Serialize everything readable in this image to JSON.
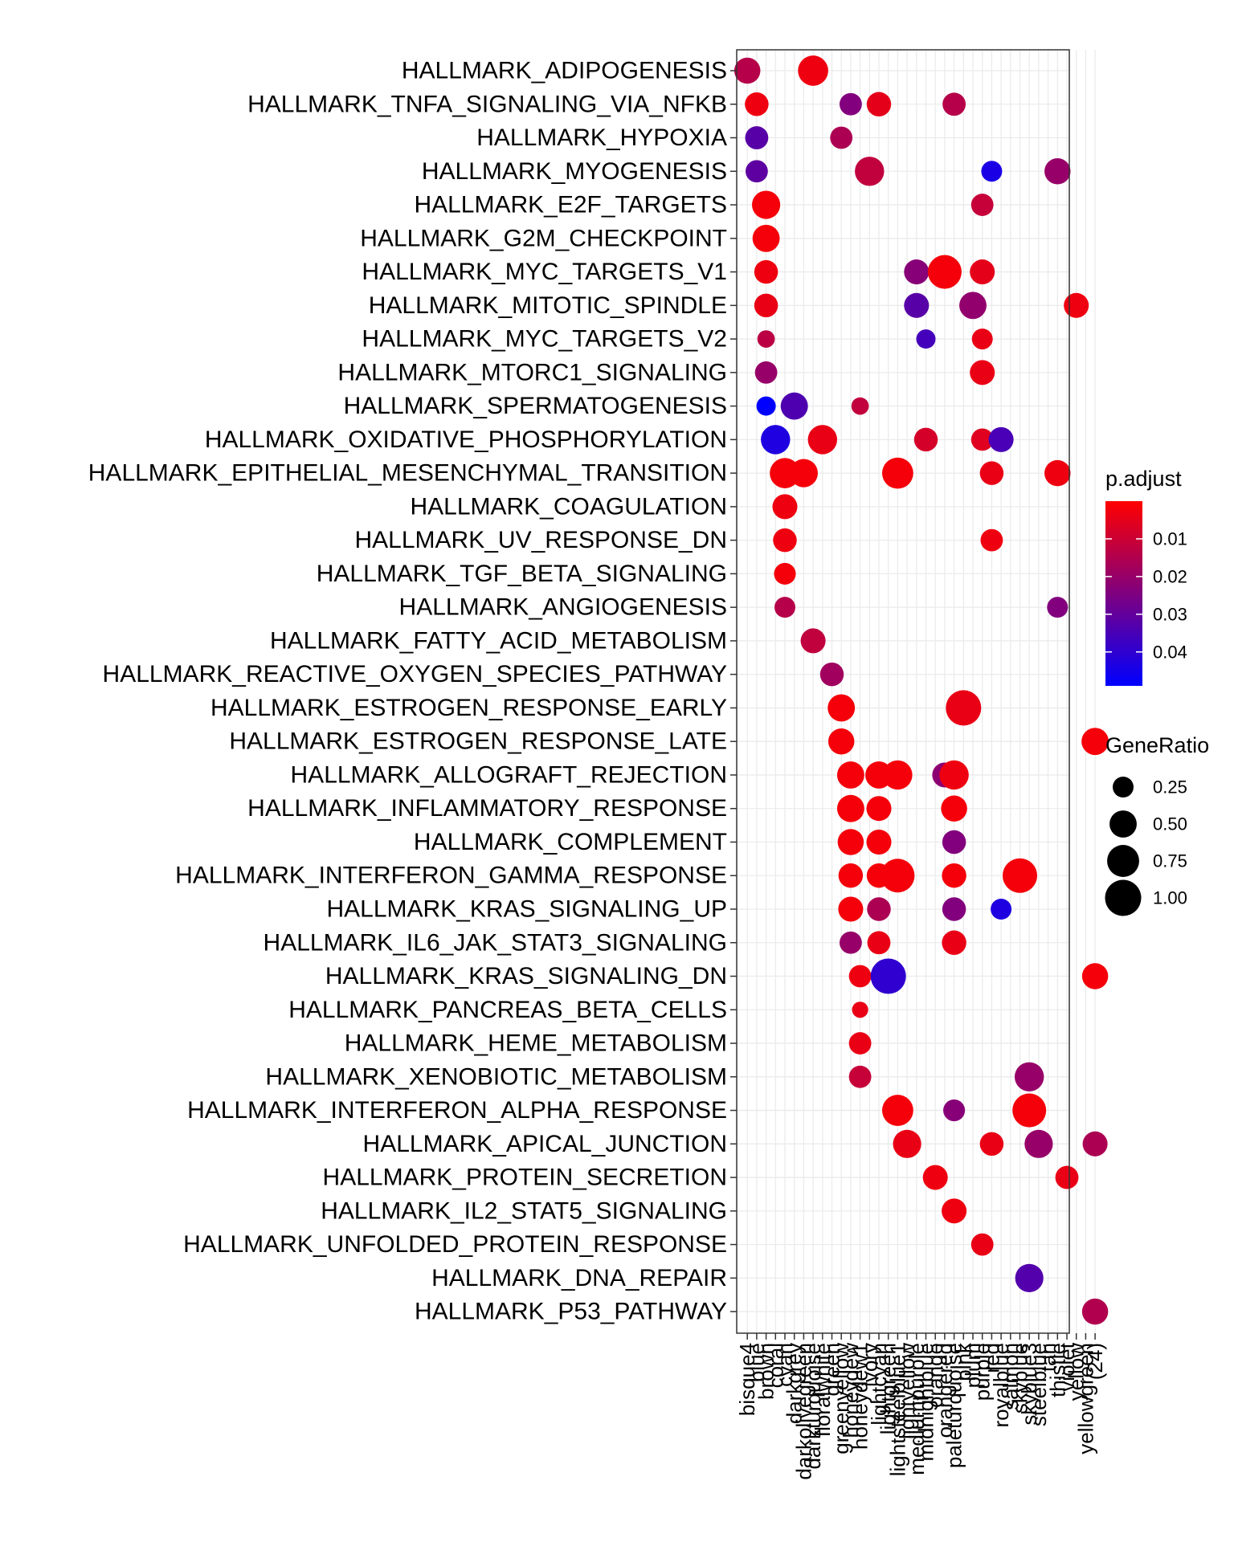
{
  "chart_data": {
    "type": "scatter",
    "title": "",
    "xlabel": "",
    "ylabel": "",
    "grid": true,
    "legend_position": "right",
    "pathways": [
      "HALLMARK_ADIPOGENESIS",
      "HALLMARK_TNFA_SIGNALING_VIA_NFKB",
      "HALLMARK_HYPOXIA",
      "HALLMARK_MYOGENESIS",
      "HALLMARK_E2F_TARGETS",
      "HALLMARK_G2M_CHECKPOINT",
      "HALLMARK_MYC_TARGETS_V1",
      "HALLMARK_MITOTIC_SPINDLE",
      "HALLMARK_MYC_TARGETS_V2",
      "HALLMARK_MTORC1_SIGNALING",
      "HALLMARK_SPERMATOGENESIS",
      "HALLMARK_OXIDATIVE_PHOSPHORYLATION",
      "HALLMARK_EPITHELIAL_MESENCHYMAL_TRANSITION",
      "HALLMARK_COAGULATION",
      "HALLMARK_UV_RESPONSE_DN",
      "HALLMARK_TGF_BETA_SIGNALING",
      "HALLMARK_ANGIOGENESIS",
      "HALLMARK_FATTY_ACID_METABOLISM",
      "HALLMARK_REACTIVE_OXYGEN_SPECIES_PATHWAY",
      "HALLMARK_ESTROGEN_RESPONSE_EARLY",
      "HALLMARK_ESTROGEN_RESPONSE_LATE",
      "HALLMARK_ALLOGRAFT_REJECTION",
      "HALLMARK_INFLAMMATORY_RESPONSE",
      "HALLMARK_COMPLEMENT",
      "HALLMARK_INTERFERON_GAMMA_RESPONSE",
      "HALLMARK_KRAS_SIGNALING_UP",
      "HALLMARK_IL6_JAK_STAT3_SIGNALING",
      "HALLMARK_KRAS_SIGNALING_DN",
      "HALLMARK_PANCREAS_BETA_CELLS",
      "HALLMARK_HEME_METABOLISM",
      "HALLMARK_XENOBIOTIC_METABOLISM",
      "HALLMARK_INTERFERON_ALPHA_RESPONSE",
      "HALLMARK_APICAL_JUNCTION",
      "HALLMARK_PROTEIN_SECRETION",
      "HALLMARK_IL2_STAT5_SIGNALING",
      "HALLMARK_UNFOLDED_PROTEIN_RESPONSE",
      "HALLMARK_DNA_REPAIR",
      "HALLMARK_P53_PATHWAY"
    ],
    "modules": [
      "bisque4",
      "blue",
      "brown",
      "coral",
      "cyan",
      "darkgrey",
      "darkolivegreen",
      "darkturquoise",
      "floralwhite",
      "green",
      "greenyellow",
      "honeydew",
      "honeydew1",
      "ivory",
      "lightcyan",
      "lightgreen",
      "lightsteelblue1",
      "lightyellow",
      "mediumpurple",
      "midnightblue",
      "orange",
      "orangered",
      "paleturquoise",
      "pink",
      "plum",
      "purple",
      "red",
      "royalblue",
      "salmon",
      "skyblue",
      "skyblue3",
      "steelblue",
      "tan",
      "thistle",
      "violet",
      "yellow",
      "yellowgreen",
      "(24)"
    ],
    "size_legend": {
      "title": "GeneRatio",
      "breaks": [
        0.25,
        0.5,
        0.75,
        1.0
      ],
      "labels": [
        "0.25",
        "0.50",
        "0.75",
        "1.00"
      ]
    },
    "color_legend": {
      "title": "p.adjust",
      "min": 0.0,
      "max": 0.049,
      "breaks": [
        0.01,
        0.02,
        0.03,
        0.04
      ],
      "labels": [
        "0.01",
        "0.02",
        "0.03",
        "0.04"
      ],
      "low_color": "#FF0000",
      "high_color": "#0000FF"
    },
    "points": [
      {
        "pathway": 0,
        "module": 0,
        "ratio": 0.45,
        "padj": 0.014
      },
      {
        "pathway": 0,
        "module": 7,
        "ratio": 0.65,
        "padj": 0.003
      },
      {
        "pathway": 1,
        "module": 1,
        "ratio": 0.35,
        "padj": 0.003
      },
      {
        "pathway": 1,
        "module": 11,
        "ratio": 0.3,
        "padj": 0.024
      },
      {
        "pathway": 1,
        "module": 14,
        "ratio": 0.38,
        "padj": 0.005
      },
      {
        "pathway": 1,
        "module": 22,
        "ratio": 0.33,
        "padj": 0.014
      },
      {
        "pathway": 2,
        "module": 1,
        "ratio": 0.33,
        "padj": 0.032
      },
      {
        "pathway": 2,
        "module": 10,
        "ratio": 0.3,
        "padj": 0.016
      },
      {
        "pathway": 3,
        "module": 1,
        "ratio": 0.3,
        "padj": 0.031
      },
      {
        "pathway": 3,
        "module": 13,
        "ratio": 0.6,
        "padj": 0.012
      },
      {
        "pathway": 3,
        "module": 26,
        "ratio": 0.25,
        "padj": 0.044
      },
      {
        "pathway": 3,
        "module": 33,
        "ratio": 0.45,
        "padj": 0.02
      },
      {
        "pathway": 4,
        "module": 2,
        "ratio": 0.55,
        "padj": 0.002
      },
      {
        "pathway": 4,
        "module": 25,
        "ratio": 0.3,
        "padj": 0.011
      },
      {
        "pathway": 5,
        "module": 2,
        "ratio": 0.5,
        "padj": 0.002
      },
      {
        "pathway": 6,
        "module": 2,
        "ratio": 0.35,
        "padj": 0.003
      },
      {
        "pathway": 6,
        "module": 18,
        "ratio": 0.4,
        "padj": 0.023
      },
      {
        "pathway": 6,
        "module": 21,
        "ratio": 0.85,
        "padj": 0.002
      },
      {
        "pathway": 6,
        "module": 25,
        "ratio": 0.4,
        "padj": 0.005
      },
      {
        "pathway": 7,
        "module": 2,
        "ratio": 0.35,
        "padj": 0.004
      },
      {
        "pathway": 7,
        "module": 18,
        "ratio": 0.4,
        "padj": 0.032
      },
      {
        "pathway": 7,
        "module": 24,
        "ratio": 0.5,
        "padj": 0.021
      },
      {
        "pathway": 7,
        "module": 35,
        "ratio": 0.4,
        "padj": 0.003
      },
      {
        "pathway": 8,
        "module": 2,
        "ratio": 0.15,
        "padj": 0.013
      },
      {
        "pathway": 8,
        "module": 19,
        "ratio": 0.2,
        "padj": 0.036
      },
      {
        "pathway": 8,
        "module": 25,
        "ratio": 0.25,
        "padj": 0.004
      },
      {
        "pathway": 9,
        "module": 2,
        "ratio": 0.3,
        "padj": 0.02
      },
      {
        "pathway": 9,
        "module": 25,
        "ratio": 0.4,
        "padj": 0.004
      },
      {
        "pathway": 10,
        "module": 2,
        "ratio": 0.2,
        "padj": 0.049
      },
      {
        "pathway": 10,
        "module": 5,
        "ratio": 0.5,
        "padj": 0.034
      },
      {
        "pathway": 10,
        "module": 12,
        "ratio": 0.15,
        "padj": 0.012
      },
      {
        "pathway": 11,
        "module": 3,
        "ratio": 0.6,
        "padj": 0.043
      },
      {
        "pathway": 11,
        "module": 8,
        "ratio": 0.6,
        "padj": 0.004
      },
      {
        "pathway": 11,
        "module": 19,
        "ratio": 0.35,
        "padj": 0.008
      },
      {
        "pathway": 11,
        "module": 25,
        "ratio": 0.3,
        "padj": 0.006
      },
      {
        "pathway": 11,
        "module": 27,
        "ratio": 0.4,
        "padj": 0.035
      },
      {
        "pathway": 12,
        "module": 4,
        "ratio": 0.65,
        "padj": 0.002
      },
      {
        "pathway": 12,
        "module": 6,
        "ratio": 0.55,
        "padj": 0.002
      },
      {
        "pathway": 12,
        "module": 16,
        "ratio": 0.7,
        "padj": 0.002
      },
      {
        "pathway": 12,
        "module": 26,
        "ratio": 0.35,
        "padj": 0.004
      },
      {
        "pathway": 12,
        "module": 33,
        "ratio": 0.45,
        "padj": 0.003
      },
      {
        "pathway": 13,
        "module": 4,
        "ratio": 0.4,
        "padj": 0.003
      },
      {
        "pathway": 14,
        "module": 4,
        "ratio": 0.35,
        "padj": 0.003
      },
      {
        "pathway": 14,
        "module": 26,
        "ratio": 0.3,
        "padj": 0.003
      },
      {
        "pathway": 15,
        "module": 4,
        "ratio": 0.28,
        "padj": 0.002
      },
      {
        "pathway": 16,
        "module": 4,
        "ratio": 0.25,
        "padj": 0.014
      },
      {
        "pathway": 16,
        "module": 33,
        "ratio": 0.25,
        "padj": 0.024
      },
      {
        "pathway": 17,
        "module": 7,
        "ratio": 0.4,
        "padj": 0.012
      },
      {
        "pathway": 18,
        "module": 9,
        "ratio": 0.35,
        "padj": 0.018
      },
      {
        "pathway": 19,
        "module": 10,
        "ratio": 0.5,
        "padj": 0.002
      },
      {
        "pathway": 19,
        "module": 23,
        "ratio": 0.95,
        "padj": 0.004
      },
      {
        "pathway": 20,
        "module": 10,
        "ratio": 0.45,
        "padj": 0.002
      },
      {
        "pathway": 20,
        "module": 37,
        "ratio": 0.5,
        "padj": 0.002
      },
      {
        "pathway": 21,
        "module": 11,
        "ratio": 0.5,
        "padj": 0.002
      },
      {
        "pathway": 21,
        "module": 14,
        "ratio": 0.5,
        "padj": 0.002
      },
      {
        "pathway": 21,
        "module": 16,
        "ratio": 0.6,
        "padj": 0.002
      },
      {
        "pathway": 21,
        "module": 21,
        "ratio": 0.4,
        "padj": 0.022
      },
      {
        "pathway": 21,
        "module": 22,
        "ratio": 0.6,
        "padj": 0.003
      },
      {
        "pathway": 22,
        "module": 11,
        "ratio": 0.5,
        "padj": 0.002
      },
      {
        "pathway": 22,
        "module": 14,
        "ratio": 0.4,
        "padj": 0.002
      },
      {
        "pathway": 22,
        "module": 22,
        "ratio": 0.45,
        "padj": 0.002
      },
      {
        "pathway": 23,
        "module": 11,
        "ratio": 0.45,
        "padj": 0.002
      },
      {
        "pathway": 23,
        "module": 14,
        "ratio": 0.4,
        "padj": 0.002
      },
      {
        "pathway": 23,
        "module": 22,
        "ratio": 0.35,
        "padj": 0.024
      },
      {
        "pathway": 24,
        "module": 11,
        "ratio": 0.38,
        "padj": 0.002
      },
      {
        "pathway": 24,
        "module": 14,
        "ratio": 0.38,
        "padj": 0.002
      },
      {
        "pathway": 24,
        "module": 16,
        "ratio": 0.85,
        "padj": 0.002
      },
      {
        "pathway": 24,
        "module": 22,
        "ratio": 0.38,
        "padj": 0.002
      },
      {
        "pathway": 24,
        "module": 29,
        "ratio": 0.9,
        "padj": 0.002
      },
      {
        "pathway": 25,
        "module": 11,
        "ratio": 0.4,
        "padj": 0.002
      },
      {
        "pathway": 25,
        "module": 14,
        "ratio": 0.35,
        "padj": 0.016
      },
      {
        "pathway": 25,
        "module": 22,
        "ratio": 0.35,
        "padj": 0.024
      },
      {
        "pathway": 25,
        "module": 27,
        "ratio": 0.25,
        "padj": 0.043
      },
      {
        "pathway": 26,
        "module": 11,
        "ratio": 0.3,
        "padj": 0.02
      },
      {
        "pathway": 26,
        "module": 14,
        "ratio": 0.33,
        "padj": 0.004
      },
      {
        "pathway": 26,
        "module": 22,
        "ratio": 0.38,
        "padj": 0.004
      },
      {
        "pathway": 27,
        "module": 12,
        "ratio": 0.3,
        "padj": 0.003
      },
      {
        "pathway": 27,
        "module": 15,
        "ratio": 0.95,
        "padj": 0.04
      },
      {
        "pathway": 27,
        "module": 37,
        "ratio": 0.45,
        "padj": 0.002
      },
      {
        "pathway": 28,
        "module": 12,
        "ratio": 0.12,
        "padj": 0.004
      },
      {
        "pathway": 29,
        "module": 12,
        "ratio": 0.3,
        "padj": 0.004
      },
      {
        "pathway": 30,
        "module": 12,
        "ratio": 0.3,
        "padj": 0.011
      },
      {
        "pathway": 30,
        "module": 30,
        "ratio": 0.6,
        "padj": 0.02
      },
      {
        "pathway": 31,
        "module": 16,
        "ratio": 0.7,
        "padj": 0.002
      },
      {
        "pathway": 31,
        "module": 22,
        "ratio": 0.28,
        "padj": 0.023
      },
      {
        "pathway": 31,
        "module": 30,
        "ratio": 0.85,
        "padj": 0.002
      },
      {
        "pathway": 32,
        "module": 17,
        "ratio": 0.55,
        "padj": 0.004
      },
      {
        "pathway": 32,
        "module": 26,
        "ratio": 0.35,
        "padj": 0.004
      },
      {
        "pathway": 32,
        "module": 31,
        "ratio": 0.55,
        "padj": 0.02
      },
      {
        "pathway": 32,
        "module": 37,
        "ratio": 0.4,
        "padj": 0.016
      },
      {
        "pathway": 33,
        "module": 20,
        "ratio": 0.4,
        "padj": 0.003
      },
      {
        "pathway": 33,
        "module": 34,
        "ratio": 0.33,
        "padj": 0.004
      },
      {
        "pathway": 34,
        "module": 22,
        "ratio": 0.4,
        "padj": 0.003
      },
      {
        "pathway": 35,
        "module": 25,
        "ratio": 0.3,
        "padj": 0.004
      },
      {
        "pathway": 36,
        "module": 30,
        "ratio": 0.55,
        "padj": 0.033
      },
      {
        "pathway": 37,
        "module": 37,
        "ratio": 0.45,
        "padj": 0.015
      }
    ]
  }
}
